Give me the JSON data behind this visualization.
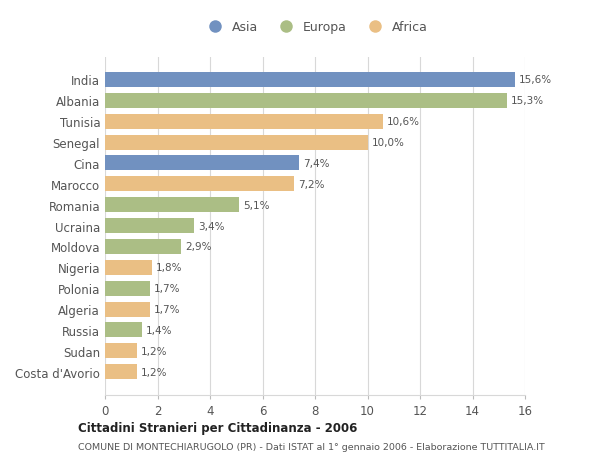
{
  "categories": [
    "India",
    "Albania",
    "Tunisia",
    "Senegal",
    "Cina",
    "Marocco",
    "Romania",
    "Ucraina",
    "Moldova",
    "Nigeria",
    "Polonia",
    "Algeria",
    "Russia",
    "Sudan",
    "Costa d'Avorio"
  ],
  "values": [
    15.6,
    15.3,
    10.6,
    10.0,
    7.4,
    7.2,
    5.1,
    3.4,
    2.9,
    1.8,
    1.7,
    1.7,
    1.4,
    1.2,
    1.2
  ],
  "continents": [
    "Asia",
    "Europa",
    "Africa",
    "Africa",
    "Asia",
    "Africa",
    "Europa",
    "Europa",
    "Europa",
    "Africa",
    "Europa",
    "Africa",
    "Europa",
    "Africa",
    "Africa"
  ],
  "labels": [
    "15,6%",
    "15,3%",
    "10,6%",
    "10,0%",
    "7,4%",
    "7,2%",
    "5,1%",
    "3,4%",
    "2,9%",
    "1,8%",
    "1,7%",
    "1,7%",
    "1,4%",
    "1,2%",
    "1,2%"
  ],
  "colors": {
    "Asia": "#7191c0",
    "Europa": "#abbe85",
    "Africa": "#eabf84"
  },
  "xlim": [
    0,
    16
  ],
  "xticks": [
    0,
    2,
    4,
    6,
    8,
    10,
    12,
    14,
    16
  ],
  "title": "Cittadini Stranieri per Cittadinanza - 2006",
  "subtitle": "COMUNE DI MONTECHIARUGOLO (PR) - Dati ISTAT al 1° gennaio 2006 - Elaborazione TUTTITALIA.IT",
  "background_color": "#ffffff",
  "grid_color": "#d8d8d8",
  "bar_height": 0.72
}
